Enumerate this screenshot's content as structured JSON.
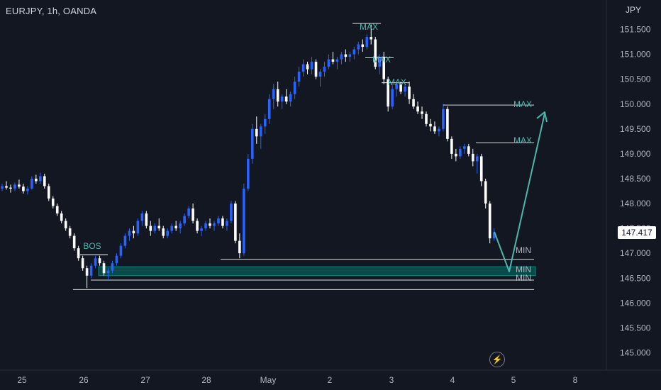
{
  "header": {
    "symbol": "EURJPY, 1h, OANDA",
    "currency": "JPY"
  },
  "price_badge": "147.417",
  "chart_data": {
    "type": "candlestick",
    "title": "EURJPY, 1h, OANDA",
    "ylabel": "JPY",
    "ylim": [
      144.75,
      151.75
    ],
    "y_ticks": [
      "151.500",
      "151.000",
      "150.500",
      "150.000",
      "149.500",
      "149.000",
      "148.500",
      "148.000",
      "147.500",
      "147.000",
      "146.500",
      "146.000",
      "145.500",
      "145.000"
    ],
    "x_ticks": [
      "25",
      "26",
      "27",
      "28",
      "May",
      "2",
      "3",
      "4",
      "5",
      "8"
    ],
    "last_price": 147.417,
    "colors": {
      "up": "#2962ff",
      "down": "#ffffff",
      "zone": "#00897b",
      "line": "#ffffff",
      "arrow": "#4db6ac",
      "label": "#4db6ac",
      "min_label": "#b2b5be"
    },
    "candles": [
      [
        0,
        148.3,
        148.4,
        148.25,
        148.35
      ],
      [
        1,
        148.35,
        148.45,
        148.28,
        148.32
      ],
      [
        2,
        148.32,
        148.38,
        148.22,
        148.3
      ],
      [
        3,
        148.3,
        148.42,
        148.25,
        148.38
      ],
      [
        4,
        148.38,
        148.48,
        148.3,
        148.34
      ],
      [
        5,
        148.34,
        148.4,
        148.2,
        148.25
      ],
      [
        6,
        148.25,
        148.35,
        148.18,
        148.3
      ],
      [
        7,
        148.3,
        148.55,
        148.28,
        148.5
      ],
      [
        8,
        148.5,
        148.58,
        148.4,
        148.45
      ],
      [
        9,
        148.45,
        148.62,
        148.4,
        148.55
      ],
      [
        10,
        148.55,
        148.6,
        148.3,
        148.35
      ],
      [
        11,
        148.35,
        148.4,
        148.05,
        148.1
      ],
      [
        12,
        148.1,
        148.15,
        147.9,
        147.95
      ],
      [
        13,
        147.95,
        148.0,
        147.75,
        147.8
      ],
      [
        14,
        147.8,
        147.85,
        147.6,
        147.65
      ],
      [
        15,
        147.65,
        147.7,
        147.45,
        147.5
      ],
      [
        16,
        147.5,
        147.55,
        147.3,
        147.35
      ],
      [
        17,
        147.35,
        147.4,
        147.05,
        147.1
      ],
      [
        18,
        147.1,
        147.15,
        146.85,
        146.9
      ],
      [
        19,
        146.9,
        146.95,
        146.65,
        146.7
      ],
      [
        20,
        146.7,
        146.75,
        146.3,
        146.55
      ],
      [
        21,
        146.55,
        146.8,
        146.5,
        146.75
      ],
      [
        22,
        146.75,
        146.95,
        146.7,
        146.9
      ],
      [
        23,
        146.9,
        146.95,
        146.75,
        146.8
      ],
      [
        24,
        146.8,
        146.85,
        146.55,
        146.6
      ],
      [
        25,
        146.6,
        146.7,
        146.48,
        146.65
      ],
      [
        26,
        146.65,
        146.85,
        146.6,
        146.8
      ],
      [
        27,
        146.8,
        147.0,
        146.75,
        146.95
      ],
      [
        28,
        146.95,
        147.2,
        146.9,
        147.15
      ],
      [
        29,
        147.15,
        147.4,
        147.1,
        147.35
      ],
      [
        30,
        147.35,
        147.5,
        147.25,
        147.45
      ],
      [
        31,
        147.45,
        147.55,
        147.3,
        147.4
      ],
      [
        32,
        147.4,
        147.7,
        147.35,
        147.65
      ],
      [
        33,
        147.65,
        147.85,
        147.55,
        147.8
      ],
      [
        34,
        147.8,
        147.85,
        147.5,
        147.55
      ],
      [
        35,
        147.55,
        147.65,
        147.35,
        147.45
      ],
      [
        36,
        147.45,
        147.6,
        147.4,
        147.55
      ],
      [
        37,
        147.55,
        147.7,
        147.45,
        147.5
      ],
      [
        38,
        147.5,
        147.55,
        147.3,
        147.35
      ],
      [
        39,
        147.35,
        147.5,
        147.3,
        147.45
      ],
      [
        40,
        147.45,
        147.6,
        147.4,
        147.55
      ],
      [
        41,
        147.55,
        147.65,
        147.45,
        147.5
      ],
      [
        42,
        147.5,
        147.65,
        147.4,
        147.6
      ],
      [
        43,
        147.6,
        147.8,
        147.55,
        147.75
      ],
      [
        44,
        147.75,
        147.95,
        147.7,
        147.9
      ],
      [
        45,
        147.9,
        148.0,
        147.6,
        147.65
      ],
      [
        46,
        147.65,
        147.7,
        147.4,
        147.45
      ],
      [
        47,
        147.45,
        147.55,
        147.35,
        147.5
      ],
      [
        48,
        147.5,
        147.65,
        147.45,
        147.6
      ],
      [
        49,
        147.6,
        147.7,
        147.5,
        147.55
      ],
      [
        50,
        147.55,
        147.65,
        147.45,
        147.6
      ],
      [
        51,
        147.6,
        147.75,
        147.55,
        147.7
      ],
      [
        52,
        147.7,
        147.75,
        147.5,
        147.55
      ],
      [
        53,
        147.55,
        147.7,
        147.45,
        147.65
      ],
      [
        54,
        147.65,
        148.05,
        147.6,
        148.0
      ],
      [
        55,
        148.0,
        148.05,
        147.2,
        147.25
      ],
      [
        56,
        147.25,
        147.4,
        146.9,
        147.0
      ],
      [
        57,
        147.0,
        148.4,
        146.95,
        148.3
      ],
      [
        58,
        148.3,
        149.0,
        148.25,
        148.9
      ],
      [
        59,
        148.9,
        149.6,
        148.8,
        149.5
      ],
      [
        60,
        149.5,
        149.75,
        149.2,
        149.35
      ],
      [
        61,
        149.35,
        149.6,
        149.1,
        149.55
      ],
      [
        62,
        149.55,
        149.8,
        149.4,
        149.7
      ],
      [
        63,
        149.7,
        150.2,
        149.6,
        150.1
      ],
      [
        64,
        150.1,
        150.4,
        149.9,
        150.3
      ],
      [
        65,
        150.3,
        150.45,
        149.95,
        150.05
      ],
      [
        66,
        150.05,
        150.2,
        149.9,
        150.15
      ],
      [
        67,
        150.15,
        150.3,
        150.0,
        150.05
      ],
      [
        68,
        150.05,
        150.25,
        149.95,
        150.2
      ],
      [
        69,
        150.2,
        150.55,
        150.1,
        150.45
      ],
      [
        70,
        150.45,
        150.75,
        150.35,
        150.65
      ],
      [
        71,
        150.65,
        150.9,
        150.55,
        150.8
      ],
      [
        72,
        150.8,
        150.85,
        150.6,
        150.7
      ],
      [
        73,
        150.7,
        150.95,
        150.6,
        150.85
      ],
      [
        74,
        150.85,
        150.9,
        150.5,
        150.55
      ],
      [
        75,
        150.55,
        150.7,
        150.35,
        150.65
      ],
      [
        76,
        150.65,
        150.85,
        150.55,
        150.75
      ],
      [
        77,
        150.75,
        151.0,
        150.7,
        150.9
      ],
      [
        78,
        150.9,
        151.05,
        150.8,
        150.85
      ],
      [
        79,
        150.85,
        150.95,
        150.7,
        150.9
      ],
      [
        80,
        150.9,
        151.05,
        150.8,
        151.0
      ],
      [
        81,
        151.0,
        151.1,
        150.85,
        150.95
      ],
      [
        82,
        150.95,
        151.05,
        150.85,
        151.0
      ],
      [
        83,
        151.0,
        151.15,
        150.9,
        151.1
      ],
      [
        84,
        151.1,
        151.25,
        151.0,
        151.2
      ],
      [
        85,
        151.2,
        151.3,
        151.05,
        151.15
      ],
      [
        86,
        151.15,
        151.4,
        151.1,
        151.35
      ],
      [
        87,
        151.35,
        151.6,
        151.2,
        151.3
      ],
      [
        88,
        151.3,
        151.35,
        150.7,
        150.75
      ],
      [
        89,
        150.75,
        151.0,
        150.6,
        150.95
      ],
      [
        90,
        150.95,
        151.05,
        150.4,
        150.5
      ],
      [
        91,
        150.5,
        150.55,
        149.85,
        149.95
      ],
      [
        92,
        149.95,
        150.4,
        149.9,
        150.3
      ],
      [
        93,
        150.3,
        150.45,
        150.15,
        150.4
      ],
      [
        94,
        150.4,
        150.45,
        150.2,
        150.25
      ],
      [
        95,
        150.25,
        150.4,
        150.15,
        150.35
      ],
      [
        96,
        150.35,
        150.45,
        150.0,
        150.1
      ],
      [
        97,
        150.1,
        150.2,
        149.9,
        149.95
      ],
      [
        98,
        149.95,
        150.05,
        149.8,
        149.85
      ],
      [
        99,
        149.85,
        149.95,
        149.7,
        149.8
      ],
      [
        100,
        149.8,
        149.85,
        149.55,
        149.6
      ],
      [
        101,
        149.6,
        149.7,
        149.45,
        149.55
      ],
      [
        102,
        149.55,
        149.65,
        149.4,
        149.45
      ],
      [
        103,
        149.45,
        149.55,
        149.35,
        149.5
      ],
      [
        104,
        149.5,
        150.0,
        149.45,
        149.9
      ],
      [
        105,
        149.9,
        149.95,
        149.25,
        149.3
      ],
      [
        106,
        149.3,
        149.35,
        148.9,
        149.0
      ],
      [
        107,
        149.0,
        149.1,
        148.85,
        148.95
      ],
      [
        108,
        148.95,
        149.15,
        148.9,
        149.1
      ],
      [
        109,
        149.1,
        149.2,
        149.0,
        149.15
      ],
      [
        110,
        149.15,
        149.2,
        148.95,
        149.0
      ],
      [
        111,
        149.0,
        149.1,
        148.75,
        148.85
      ],
      [
        112,
        148.85,
        149.0,
        148.6,
        148.95
      ],
      [
        113,
        148.95,
        149.0,
        148.35,
        148.45
      ],
      [
        114,
        148.45,
        148.5,
        147.9,
        148.0
      ],
      [
        115,
        148.0,
        148.05,
        147.2,
        147.3
      ],
      [
        116,
        147.3,
        147.5,
        147.25,
        147.42
      ]
    ],
    "zones": [
      {
        "from": 146.55,
        "to": 146.73
      }
    ],
    "levels": [
      {
        "price": 146.88,
        "label": "MIN"
      },
      {
        "price": 146.46,
        "label": "MIN"
      },
      {
        "price": 146.27,
        "label": ""
      }
    ],
    "annotations": [
      "BOS",
      "MAX",
      "MAX",
      "MAX",
      "MAX",
      "MAX",
      "MIN",
      "MIN",
      "MIN"
    ]
  }
}
